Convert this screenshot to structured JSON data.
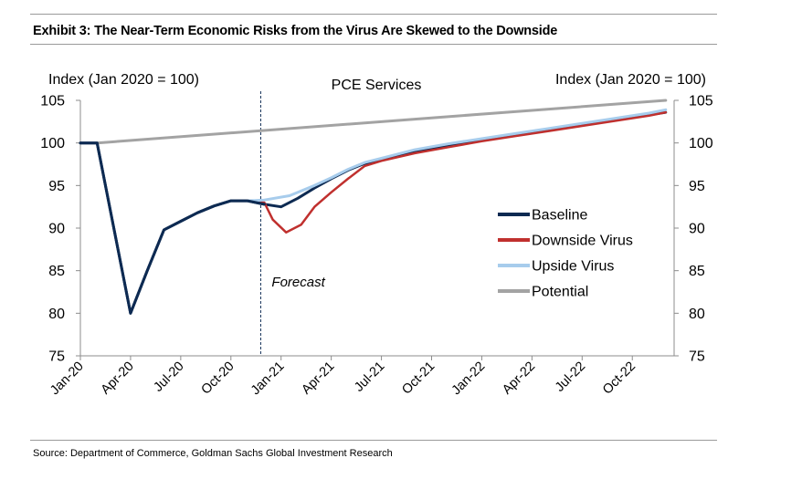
{
  "title": "Exhibit 3: The Near-Term Economic Risks from the Virus Are Skewed to the Downside",
  "source": "Source: Department of Commerce, Goldman Sachs Global Investment Research",
  "chart_data": {
    "type": "line",
    "title": "PCE Services",
    "ylabel_left": "Index (Jan 2020 = 100)",
    "ylabel_right": "Index (Jan 2020 = 100)",
    "ylim": [
      75,
      105
    ],
    "yticks": [
      75,
      80,
      85,
      90,
      95,
      100,
      105
    ],
    "x_tick_labels": [
      "Jan-20",
      "Apr-20",
      "Jul-20",
      "Oct-20",
      "Jan-21",
      "Apr-21",
      "Jul-21",
      "Oct-21",
      "Jan-22",
      "Apr-22",
      "Jul-22",
      "Oct-22"
    ],
    "x_tick_positions": [
      0,
      3,
      6,
      9,
      12,
      15,
      18,
      21,
      24,
      27,
      30,
      33
    ],
    "x_range": [
      0,
      35.5
    ],
    "forecast_start": 11,
    "annotation": "Forecast",
    "series": [
      {
        "name": "Baseline",
        "color": "#0d2a52",
        "width": 3,
        "points": [
          [
            0,
            100
          ],
          [
            1,
            100
          ],
          [
            2,
            90
          ],
          [
            3,
            80
          ],
          [
            4,
            85
          ],
          [
            5,
            89.8
          ],
          [
            6,
            90.8
          ],
          [
            7,
            91.8
          ],
          [
            8,
            92.6
          ],
          [
            9,
            93.2
          ],
          [
            10,
            93.2
          ],
          [
            11,
            92.8
          ],
          [
            12,
            92.5
          ],
          [
            13,
            93.5
          ],
          [
            14,
            94.7
          ],
          [
            15,
            95.8
          ],
          [
            16,
            96.8
          ],
          [
            17,
            97.6
          ],
          [
            18,
            98.0
          ],
          [
            20,
            98.9
          ],
          [
            22,
            99.6
          ],
          [
            24,
            100.3
          ],
          [
            26,
            100.9
          ],
          [
            28,
            101.5
          ],
          [
            30,
            102.1
          ],
          [
            32,
            102.7
          ],
          [
            34,
            103.3
          ],
          [
            35,
            103.6
          ]
        ]
      },
      {
        "name": "Downside Virus",
        "color": "#c0302e",
        "width": 2.5,
        "points": [
          [
            10,
            93.2
          ],
          [
            11,
            93.0
          ],
          [
            11.5,
            91.0
          ],
          [
            12.3,
            89.5
          ],
          [
            13.2,
            90.4
          ],
          [
            14,
            92.5
          ],
          [
            15,
            94.2
          ],
          [
            16,
            95.8
          ],
          [
            17,
            97.3
          ],
          [
            18,
            97.9
          ],
          [
            20,
            98.8
          ],
          [
            22,
            99.5
          ],
          [
            24,
            100.2
          ],
          [
            26,
            100.8
          ],
          [
            28,
            101.4
          ],
          [
            30,
            102.0
          ],
          [
            32,
            102.6
          ],
          [
            34,
            103.2
          ],
          [
            35,
            103.6
          ]
        ]
      },
      {
        "name": "Upside Virus",
        "color": "#a7ccec",
        "width": 3,
        "points": [
          [
            10,
            93.2
          ],
          [
            11,
            93.3
          ],
          [
            12.5,
            93.8
          ],
          [
            14,
            95.0
          ],
          [
            15,
            95.9
          ],
          [
            16,
            96.9
          ],
          [
            17,
            97.7
          ],
          [
            18,
            98.2
          ],
          [
            20,
            99.2
          ],
          [
            22,
            99.9
          ],
          [
            24,
            100.5
          ],
          [
            26,
            101.1
          ],
          [
            28,
            101.7
          ],
          [
            30,
            102.3
          ],
          [
            32,
            102.9
          ],
          [
            34,
            103.5
          ],
          [
            35,
            103.9
          ]
        ]
      },
      {
        "name": "Potential",
        "color": "#a3a3a3",
        "width": 3,
        "points": [
          [
            1,
            100
          ],
          [
            35,
            105
          ]
        ]
      }
    ],
    "legend_position": "center-right"
  }
}
